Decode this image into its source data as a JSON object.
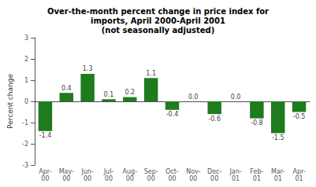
{
  "chart_data": {
    "type": "bar",
    "title": "Over-the-month percent change in price index for\nimports, April 2000-April 2001\n(not seasonally adjusted)",
    "categories": [
      "Apr-\n00",
      "May-\n00",
      "Jun-\n00",
      "Jul-\n00",
      "Aug-\n00",
      "Sep-\n00",
      "Oct-\n00",
      "Nov-\n00",
      "Dec-\n00",
      "Jan-\n01",
      "Feb-\n01",
      "Mar-\n01",
      "Apr-\n01"
    ],
    "values": [
      -1.4,
      0.4,
      1.3,
      0.1,
      0.2,
      1.1,
      -0.4,
      0.0,
      -0.6,
      0.0,
      -0.8,
      -1.5,
      -0.5
    ],
    "value_labels": [
      "-1.4",
      "0.4",
      "1.3",
      "0.1",
      "0.2",
      "1.1",
      "-0.4",
      "0.0",
      "-0.6",
      "0.0",
      "-0.8",
      "-1.5",
      "-0.5"
    ],
    "color": "#1e7b1e",
    "ylabel": "Percent change",
    "ylim": [
      -3,
      3
    ],
    "yticks": [
      -3,
      -2,
      -1,
      0,
      1,
      2,
      3
    ],
    "grid": false,
    "data_labels": true
  }
}
